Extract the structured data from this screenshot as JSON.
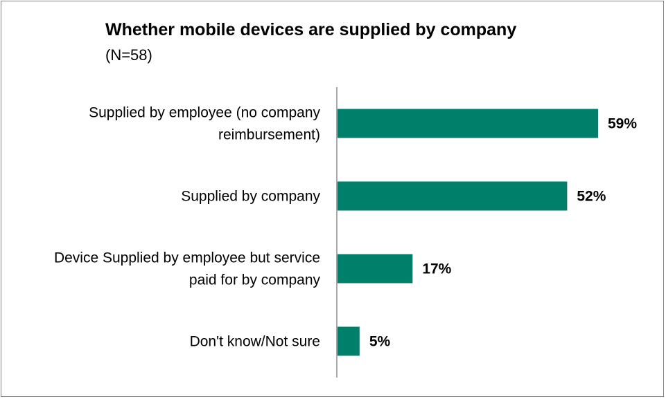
{
  "chart_data": {
    "type": "bar",
    "orientation": "horizontal",
    "title": "Whether mobile devices are supplied by company",
    "subtitle": "(N=58)",
    "categories": [
      [
        "Supplied by employee (no company",
        "reimbursement)"
      ],
      [
        "Supplied by company"
      ],
      [
        "Device Supplied by employee but service",
        "paid for by company"
      ],
      [
        "Don't know/Not sure"
      ]
    ],
    "values": [
      59,
      52,
      17,
      5
    ],
    "value_labels": [
      "59%",
      "52%",
      "17%",
      "5%"
    ],
    "xlim": [
      0,
      70
    ],
    "grid": false,
    "bar_color": "#00806a"
  }
}
